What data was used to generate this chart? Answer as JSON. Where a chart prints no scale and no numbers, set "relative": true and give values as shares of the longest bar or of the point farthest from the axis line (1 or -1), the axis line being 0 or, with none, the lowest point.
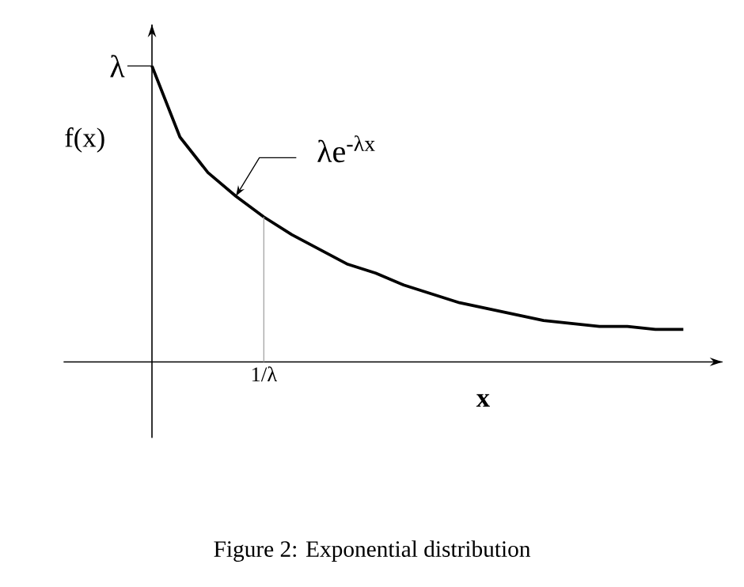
{
  "chart_data": {
    "type": "line",
    "relative": true,
    "xlabel": "x",
    "ylabel": "f(x)",
    "categories": [
      null,
      null,
      null,
      null,
      null,
      null,
      null,
      null,
      null,
      null,
      null,
      null,
      null,
      null,
      null,
      null,
      null,
      null,
      null,
      null
    ],
    "series": [
      {
        "color": "#000000",
        "values": [
          1,
          0.76,
          0.64,
          0.56,
          0.49,
          0.43,
          0.38,
          0.33,
          0.3,
          0.26,
          0.23,
          0.2,
          0.18,
          0.16,
          0.14,
          0.13,
          0.12,
          0.12,
          0.11,
          0.11
        ]
      }
    ],
    "annotations": [
      "λ",
      "λe$^{-λx}$",
      "1/λ",
      "Figure 2: Exponential distribution"
    ],
    "marker": "none",
    "line_style": "solid"
  }
}
